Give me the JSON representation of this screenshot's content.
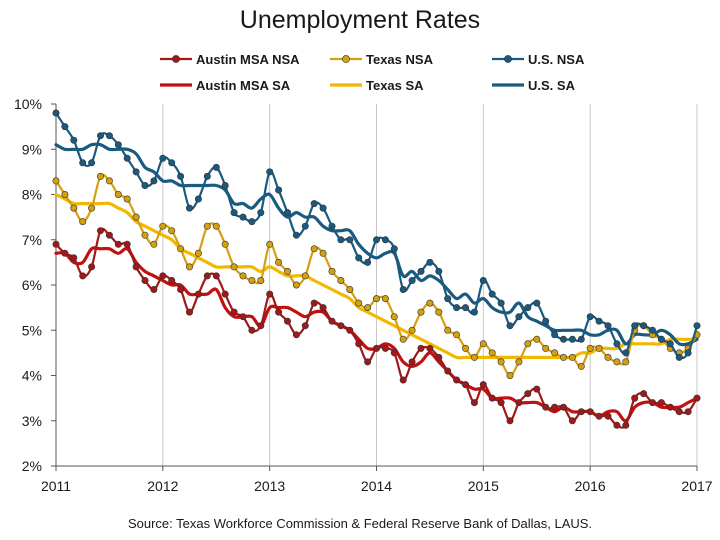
{
  "chart_data": {
    "type": "line",
    "title": "Unemployment Rates",
    "source": "Source:  Texas Workforce Commission & Federal Reserve Bank of Dallas, LAUS.",
    "xlabel": "",
    "ylabel": "",
    "x_range": [
      2011,
      2017
    ],
    "ylim": [
      2,
      10
    ],
    "x_ticks": [
      "2011",
      "2012",
      "2013",
      "2014",
      "2015",
      "2016",
      "2017"
    ],
    "y_ticks": [
      "2%",
      "3%",
      "4%",
      "5%",
      "6%",
      "7%",
      "8%",
      "9%",
      "10%"
    ],
    "grid": "vertical at year ticks",
    "legend_position": "top",
    "x_start": 2011.0,
    "x_step_months": 1,
    "series": [
      {
        "name": "Austin MSA NSA",
        "style": "line-markers",
        "color": "#a01818",
        "values": [
          6.9,
          6.7,
          6.6,
          6.2,
          6.4,
          7.2,
          7.1,
          6.9,
          6.9,
          6.4,
          6.1,
          5.9,
          6.2,
          6.1,
          5.9,
          5.4,
          5.8,
          6.2,
          6.2,
          5.8,
          5.4,
          5.3,
          5.0,
          5.1,
          5.8,
          5.4,
          5.2,
          4.9,
          5.1,
          5.6,
          5.5,
          5.2,
          5.1,
          5.0,
          4.7,
          4.3,
          4.6,
          4.6,
          4.5,
          3.9,
          4.3,
          4.6,
          4.6,
          4.4,
          4.1,
          3.9,
          3.8,
          3.4,
          3.8,
          3.5,
          3.4,
          3.0,
          3.4,
          3.6,
          3.7,
          3.3,
          3.3,
          3.3,
          3.0,
          3.2,
          3.2,
          3.1,
          3.1,
          2.9,
          2.9,
          3.5,
          3.6,
          3.4,
          3.4,
          3.3,
          3.2,
          3.2,
          3.5
        ]
      },
      {
        "name": "Texas NSA",
        "style": "line-markers",
        "color": "#d4a010",
        "values": [
          8.3,
          8.0,
          7.7,
          7.4,
          7.7,
          8.4,
          8.3,
          8.0,
          7.9,
          7.5,
          7.1,
          6.9,
          7.3,
          7.2,
          6.8,
          6.4,
          6.7,
          7.3,
          7.3,
          6.9,
          6.4,
          6.2,
          6.1,
          6.1,
          6.9,
          6.5,
          6.3,
          6.0,
          6.2,
          6.8,
          6.7,
          6.3,
          6.1,
          5.9,
          5.6,
          5.5,
          5.7,
          5.7,
          5.3,
          4.8,
          5.0,
          5.4,
          5.6,
          5.4,
          5.0,
          4.9,
          4.6,
          4.4,
          4.7,
          4.5,
          4.3,
          4.0,
          4.3,
          4.7,
          4.8,
          4.6,
          4.5,
          4.4,
          4.4,
          4.2,
          4.6,
          4.6,
          4.4,
          4.3,
          4.3,
          5.0,
          5.1,
          4.9,
          4.8,
          4.6,
          4.5,
          4.6,
          4.9
        ]
      },
      {
        "name": "U.S. NSA",
        "style": "line-markers",
        "color": "#1a5a80",
        "values": [
          9.8,
          9.5,
          9.2,
          8.7,
          8.7,
          9.3,
          9.3,
          9.1,
          8.8,
          8.5,
          8.2,
          8.3,
          8.8,
          8.7,
          8.4,
          7.7,
          7.9,
          8.4,
          8.6,
          8.2,
          7.6,
          7.5,
          7.4,
          7.6,
          8.5,
          8.1,
          7.6,
          7.1,
          7.3,
          7.8,
          7.7,
          7.3,
          7.0,
          7.0,
          6.6,
          6.5,
          7.0,
          7.0,
          6.8,
          5.9,
          6.1,
          6.3,
          6.5,
          6.3,
          5.7,
          5.5,
          5.5,
          5.4,
          6.1,
          5.8,
          5.6,
          5.1,
          5.3,
          5.5,
          5.6,
          5.2,
          4.9,
          4.8,
          4.8,
          4.8,
          5.3,
          5.2,
          5.1,
          4.7,
          4.5,
          5.1,
          5.1,
          5.0,
          4.8,
          4.7,
          4.4,
          4.5,
          5.1
        ]
      },
      {
        "name": "Austin MSA SA",
        "style": "line",
        "color": "#c01010",
        "values": [
          6.7,
          6.7,
          6.5,
          6.5,
          6.8,
          6.8,
          6.8,
          6.7,
          6.8,
          6.5,
          6.3,
          6.2,
          6.1,
          6.0,
          6.0,
          5.8,
          5.8,
          5.8,
          5.9,
          5.5,
          5.3,
          5.3,
          5.3,
          5.1,
          5.5,
          5.5,
          5.5,
          5.4,
          5.3,
          5.4,
          5.4,
          5.2,
          5.1,
          5.0,
          4.8,
          4.6,
          4.6,
          4.7,
          4.6,
          4.3,
          4.2,
          4.3,
          4.5,
          4.3,
          4.1,
          3.9,
          3.8,
          3.7,
          3.7,
          3.5,
          3.5,
          3.5,
          3.4,
          3.4,
          3.4,
          3.3,
          3.2,
          3.3,
          3.2,
          3.2,
          3.2,
          3.1,
          3.2,
          3.2,
          3.0,
          3.3,
          3.4,
          3.4,
          3.3,
          3.3,
          3.3,
          3.4,
          3.5
        ]
      },
      {
        "name": "Texas SA",
        "style": "line",
        "color": "#f2b800",
        "values": [
          8.0,
          7.9,
          7.8,
          7.8,
          7.8,
          7.8,
          7.8,
          7.7,
          7.6,
          7.4,
          7.3,
          7.2,
          7.1,
          7.0,
          6.8,
          6.7,
          6.6,
          6.5,
          6.4,
          6.4,
          6.4,
          6.4,
          6.4,
          6.3,
          6.4,
          6.3,
          6.2,
          6.2,
          6.2,
          6.1,
          6.0,
          5.9,
          5.8,
          5.7,
          5.5,
          5.4,
          5.3,
          5.2,
          5.1,
          5.0,
          4.9,
          4.8,
          4.7,
          4.6,
          4.5,
          4.4,
          4.4,
          4.4,
          4.4,
          4.4,
          4.4,
          4.4,
          4.4,
          4.4,
          4.4,
          4.4,
          4.4,
          4.4,
          4.4,
          4.5,
          4.5,
          4.6,
          4.6,
          4.6,
          4.7,
          4.7,
          4.7,
          4.7,
          4.7,
          4.8,
          4.8,
          4.8,
          4.8
        ]
      },
      {
        "name": "U.S. SA",
        "style": "line",
        "color": "#1a5a80",
        "values": [
          9.1,
          9.0,
          9.0,
          9.0,
          9.1,
          9.1,
          9.0,
          9.0,
          9.0,
          8.9,
          8.6,
          8.5,
          8.3,
          8.3,
          8.2,
          8.2,
          8.2,
          8.2,
          8.2,
          8.1,
          7.8,
          7.8,
          7.7,
          7.9,
          8.0,
          7.7,
          7.5,
          7.6,
          7.5,
          7.5,
          7.3,
          7.2,
          7.2,
          7.2,
          6.9,
          6.7,
          6.6,
          6.7,
          6.7,
          6.2,
          6.3,
          6.1,
          6.2,
          6.1,
          5.9,
          5.7,
          5.8,
          5.6,
          5.7,
          5.5,
          5.4,
          5.4,
          5.6,
          5.3,
          5.2,
          5.1,
          5.0,
          5.0,
          5.0,
          5.0,
          4.9,
          4.9,
          5.0,
          5.0,
          4.7,
          4.9,
          4.9,
          4.9,
          5.0,
          4.9,
          4.7,
          4.7,
          4.8
        ]
      }
    ]
  }
}
